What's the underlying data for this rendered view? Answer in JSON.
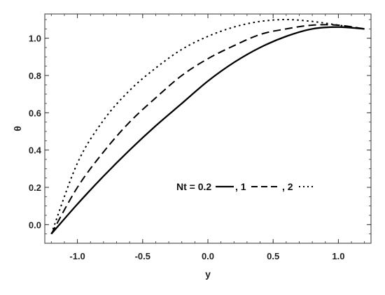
{
  "chart_data": {
    "type": "line",
    "title": "",
    "xlabel": "y",
    "ylabel": "θ",
    "xlim": [
      -1.25,
      1.25
    ],
    "ylim": [
      -0.1,
      1.13
    ],
    "xticks": [
      -1.0,
      -0.5,
      0.0,
      0.5,
      1.0
    ],
    "xtick_labels": [
      "-1.0",
      "-0.5",
      "0.0",
      "0.5",
      "1.0"
    ],
    "yticks": [
      0.0,
      0.2,
      0.4,
      0.6,
      0.8,
      1.0
    ],
    "ytick_labels": [
      "0.0",
      "0.2",
      "0.4",
      "0.6",
      "0.8",
      "1.0"
    ],
    "grid": false,
    "legend": {
      "placement": "center-right",
      "prefix": "Nt = ",
      "labels": [
        "0.2",
        "1",
        "2"
      ]
    },
    "series": [
      {
        "name": "0.2",
        "style": "solid",
        "x": [
          -1.2,
          -1.0,
          -0.8,
          -0.6,
          -0.4,
          -0.2,
          0.0,
          0.2,
          0.4,
          0.6,
          0.8,
          1.0,
          1.2
        ],
        "y": [
          -0.05,
          0.11,
          0.26,
          0.4,
          0.53,
          0.65,
          0.77,
          0.87,
          0.95,
          1.01,
          1.05,
          1.06,
          1.05
        ]
      },
      {
        "name": "1",
        "style": "dashed",
        "x": [
          -1.2,
          -1.0,
          -0.8,
          -0.6,
          -0.4,
          -0.2,
          0.0,
          0.2,
          0.4,
          0.6,
          0.8,
          1.0,
          1.2
        ],
        "y": [
          -0.05,
          0.2,
          0.39,
          0.55,
          0.68,
          0.8,
          0.89,
          0.96,
          1.02,
          1.05,
          1.07,
          1.07,
          1.05
        ]
      },
      {
        "name": "2",
        "style": "dotted",
        "x": [
          -1.2,
          -1.0,
          -0.8,
          -0.6,
          -0.4,
          -0.2,
          0.0,
          0.2,
          0.4,
          0.6,
          0.8,
          1.0,
          1.2
        ],
        "y": [
          -0.05,
          0.33,
          0.56,
          0.72,
          0.84,
          0.94,
          1.01,
          1.06,
          1.09,
          1.1,
          1.09,
          1.07,
          1.05
        ]
      }
    ]
  }
}
